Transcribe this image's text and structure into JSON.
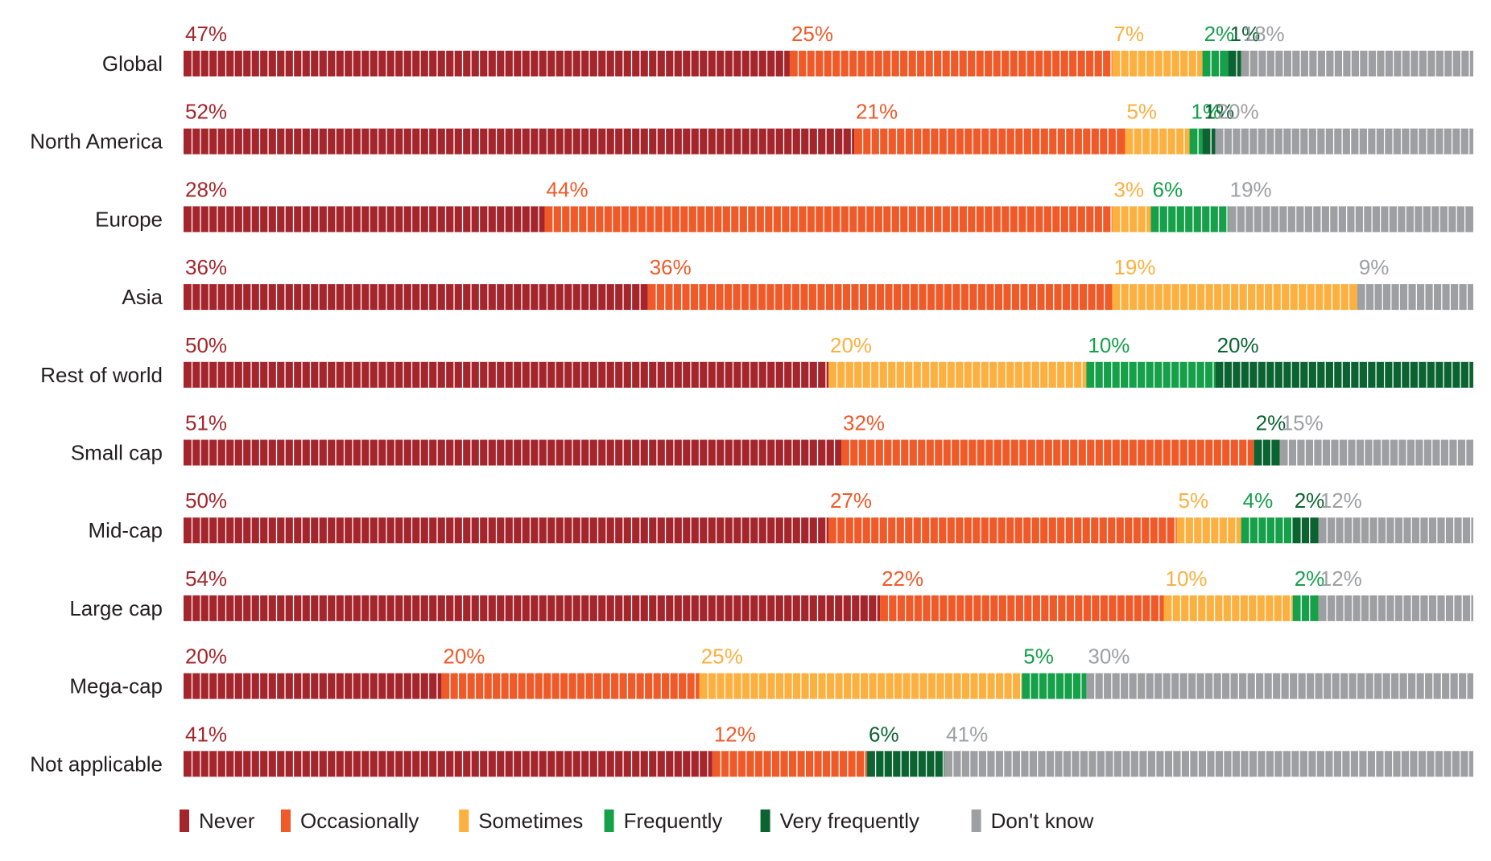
{
  "chart_data": {
    "type": "bar",
    "orientation": "horizontal",
    "stacked": true,
    "normalized": true,
    "title": "",
    "xlabel": "",
    "ylabel": "",
    "xlim": [
      0,
      100
    ],
    "unit": "%",
    "grid": false,
    "legend_position": "bottom",
    "categories": [
      "Global",
      "North America",
      "Europe",
      "Asia",
      "Rest of world",
      "Small cap",
      "Mid-cap",
      "Large cap",
      "Mega-cap",
      "Not applicable"
    ],
    "series": [
      {
        "name": "Never",
        "color": "#a4262c",
        "label_color": "#a4262c",
        "values": [
          47,
          52,
          28,
          36,
          50,
          51,
          50,
          54,
          20,
          41
        ]
      },
      {
        "name": "Occasionally",
        "color": "#ef5a28",
        "label_color": "#ef5a28",
        "values": [
          25,
          21,
          44,
          36,
          0,
          32,
          27,
          22,
          20,
          12
        ]
      },
      {
        "name": "Sometimes",
        "color": "#fbb040",
        "label_color": "#fbb040",
        "values": [
          7,
          5,
          3,
          19,
          20,
          0,
          5,
          10,
          25,
          0
        ]
      },
      {
        "name": "Frequently",
        "color": "#16a04a",
        "label_color": "#16a04a",
        "values": [
          2,
          1,
          6,
          0,
          10,
          0,
          4,
          2,
          5,
          0
        ]
      },
      {
        "name": "Very frequently",
        "color": "#0b6332",
        "label_color": "#0b6332",
        "values": [
          1,
          1,
          0,
          0,
          20,
          2,
          2,
          0,
          0,
          6
        ]
      },
      {
        "name": "Don't know",
        "color": "#9d9fa2",
        "label_color": "#9d9fa2",
        "values": [
          18,
          20,
          19,
          9,
          0,
          15,
          12,
          12,
          30,
          41
        ]
      }
    ]
  }
}
